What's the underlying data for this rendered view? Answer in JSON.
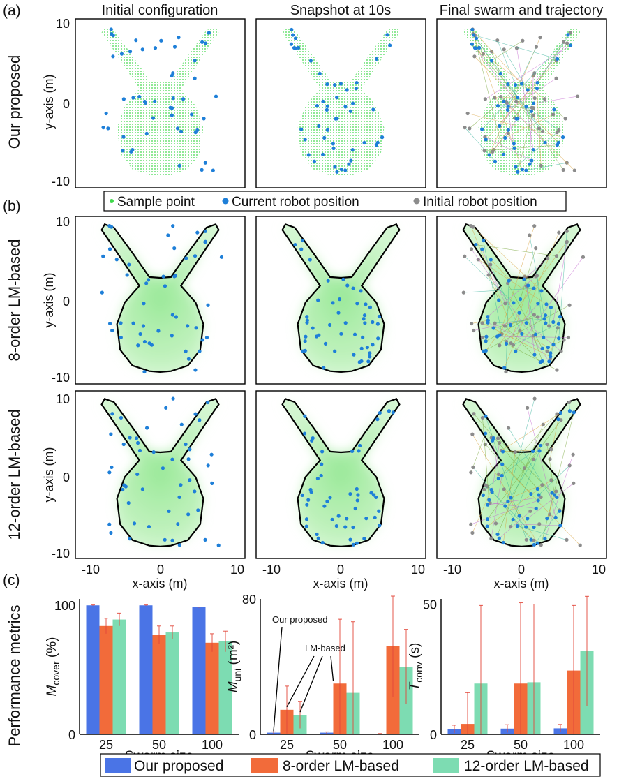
{
  "section_labels": {
    "a": "(a)",
    "b": "(b)",
    "c": "(c)"
  },
  "column_titles": [
    "Initial configuration",
    "Snapshot at 10s",
    "Final swarm and trajectory"
  ],
  "row_labels": {
    "a": "Our proposed",
    "b1": "8-order LM-based",
    "b2": "12-order LM-based",
    "c": "Performance metrics"
  },
  "axes": {
    "y_label": "y-axis (m)",
    "x_label": "x-axis (m)",
    "ticks": [
      "-10",
      "0",
      "10"
    ],
    "xlim": [
      -11,
      11
    ],
    "ylim": [
      -10.5,
      10.5
    ]
  },
  "legend_top": {
    "sample": "Sample point",
    "current": "Current robot position",
    "initial": "Initial robot position",
    "colors": {
      "sample": "#3fd84a",
      "current": "#1e7fd8",
      "initial": "#8c8c8c"
    }
  },
  "chart_data": [
    {
      "type": "bar",
      "ylabel": "M_cover (%)",
      "ylabel_main": "M",
      "ylabel_sub": "cover",
      "ylabel_unit": " (%)",
      "ylim": [
        0,
        105
      ],
      "yticks": [
        "0",
        "100"
      ],
      "xlabel": "Swarm size",
      "categories": [
        "25",
        "50",
        "100"
      ],
      "series": [
        {
          "name": "Our proposed",
          "values": [
            100,
            100,
            98.5
          ],
          "err": [
            0.3,
            0.3,
            0.3
          ]
        },
        {
          "name": "8-order LM-based",
          "values": [
            84,
            77,
            71
          ],
          "err": [
            6,
            7,
            7
          ]
        },
        {
          "name": "12-order LM-based",
          "values": [
            89,
            79,
            72
          ],
          "err": [
            5,
            5,
            8
          ]
        }
      ]
    },
    {
      "type": "bar",
      "ylabel": "M_uni (m^2)",
      "ylabel_main": "M",
      "ylabel_sub": "uni",
      "ylabel_unit": " (m²)",
      "ylim": [
        0,
        80
      ],
      "yticks": [
        "0",
        "80"
      ],
      "xlabel": "Swarm size",
      "categories": [
        "25",
        "50",
        "100"
      ],
      "series": [
        {
          "name": "Our proposed",
          "values": [
            1,
            1,
            0.3
          ],
          "err": [
            0.5,
            0.5,
            0.2
          ]
        },
        {
          "name": "8-order LM-based",
          "values": [
            14.5,
            30,
            52
          ],
          "err": [
            14,
            38,
            30
          ]
        },
        {
          "name": "12-order LM-based",
          "values": [
            11.5,
            24.5,
            40
          ],
          "err": [
            8,
            42,
            22
          ]
        }
      ],
      "annotations": [
        "Our proposed",
        "LM-based"
      ]
    },
    {
      "type": "bar",
      "ylabel": "T_conv (s)",
      "ylabel_main": "T",
      "ylabel_sub": "conv",
      "ylabel_unit": " (s)",
      "ylim": [
        0,
        52
      ],
      "yticks": [
        "0",
        "50"
      ],
      "xlabel": "Swarm size",
      "categories": [
        "25",
        "50",
        "100"
      ],
      "series": [
        {
          "name": "Our proposed",
          "values": [
            2,
            2.2,
            2.3
          ],
          "err": [
            1.5,
            1.5,
            1.5
          ]
        },
        {
          "name": "8-order LM-based",
          "values": [
            4,
            19.5,
            24.5
          ],
          "err": [
            12,
            31,
            25
          ]
        },
        {
          "name": "12-order LM-based",
          "values": [
            19.5,
            20,
            32
          ],
          "err": [
            30,
            30,
            21
          ]
        }
      ]
    }
  ],
  "legend_bottom": [
    {
      "label": "Our proposed",
      "color": "#4a74e6"
    },
    {
      "label": "8-order LM-based",
      "color": "#f26b3a"
    },
    {
      "label": "12-order LM-based",
      "color": "#7ddcb2"
    }
  ]
}
